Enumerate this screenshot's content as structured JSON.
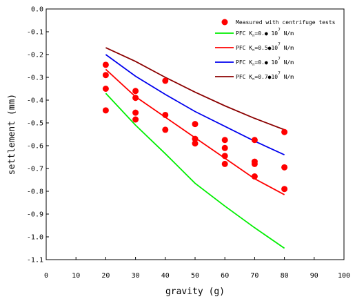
{
  "chart_data": {
    "type": "scatter",
    "xlabel": "gravity (g)",
    "ylabel": "settlement (mm)",
    "xlim": [
      0,
      100
    ],
    "ylim": [
      -1.1,
      0.0
    ],
    "xticks": [
      0,
      10,
      20,
      30,
      40,
      50,
      60,
      70,
      80,
      90,
      100
    ],
    "yticks": [
      0.0,
      -0.1,
      -0.2,
      -0.3,
      -0.4,
      -0.5,
      -0.6,
      -0.7,
      -0.8,
      -0.9,
      -1.0,
      -1.1
    ],
    "xtick_labels": [
      "0",
      "10",
      "20",
      "30",
      "40",
      "50",
      "60",
      "70",
      "80",
      "90",
      "100"
    ],
    "ytick_labels": [
      "0.0",
      "-0.1",
      "-0.2",
      "-0.3",
      "-0.4",
      "-0.5",
      "-0.6",
      "-0.7",
      "-0.8",
      "-0.9",
      "-1.0",
      "-1.1"
    ],
    "grid": false,
    "legend_position": "top-right",
    "measured": {
      "name": "Measured with centrifuge tests",
      "color": "#ff0000",
      "x": [
        20,
        20,
        20,
        20,
        30,
        30,
        30,
        30,
        40,
        40,
        40,
        50,
        50,
        50,
        60,
        60,
        60,
        60,
        70,
        70,
        70,
        70,
        80,
        80,
        80
      ],
      "y": [
        -0.245,
        -0.29,
        -0.35,
        -0.445,
        -0.36,
        -0.39,
        -0.455,
        -0.485,
        -0.315,
        -0.465,
        -0.53,
        -0.505,
        -0.57,
        -0.59,
        -0.575,
        -0.61,
        -0.645,
        -0.68,
        -0.575,
        -0.67,
        -0.68,
        -0.735,
        -0.54,
        -0.695,
        -0.79
      ]
    },
    "series": [
      {
        "name_prefix": "PFC K",
        "name_sub": "n",
        "name_value": "=0.● 10",
        "name_sup": "7",
        "name_unit": " N/m",
        "color": "#00ee00",
        "x": [
          20,
          30,
          40,
          50,
          60,
          70,
          80
        ],
        "y": [
          -0.37,
          -0.51,
          -0.635,
          -0.765,
          -0.865,
          -0.96,
          -1.05
        ]
      },
      {
        "name_prefix": "PFC K",
        "name_sub": "n",
        "name_value": "=0.5●10",
        "name_sup": "7",
        "name_unit": " N/m",
        "color": "#ff0000",
        "x": [
          20,
          30,
          40,
          50,
          60,
          70,
          80
        ],
        "y": [
          -0.265,
          -0.385,
          -0.475,
          -0.565,
          -0.655,
          -0.745,
          -0.815
        ]
      },
      {
        "name_prefix": "PFC K",
        "name_sub": "n",
        "name_value": "=0.● 10",
        "name_sup": "7",
        "name_unit": " N/m",
        "color": "#0000ee",
        "x": [
          20,
          30,
          40,
          50,
          60,
          70,
          80
        ],
        "y": [
          -0.2,
          -0.295,
          -0.375,
          -0.45,
          -0.515,
          -0.58,
          -0.64
        ]
      },
      {
        "name_prefix": "PFC K",
        "name_sub": "n",
        "name_value": "=0.7●10",
        "name_sup": "7",
        "name_unit": " N/m",
        "color": "#8b0000",
        "x": [
          20,
          30,
          40,
          50,
          60,
          70,
          80
        ],
        "y": [
          -0.17,
          -0.23,
          -0.3,
          -0.365,
          -0.425,
          -0.48,
          -0.53
        ]
      }
    ]
  }
}
